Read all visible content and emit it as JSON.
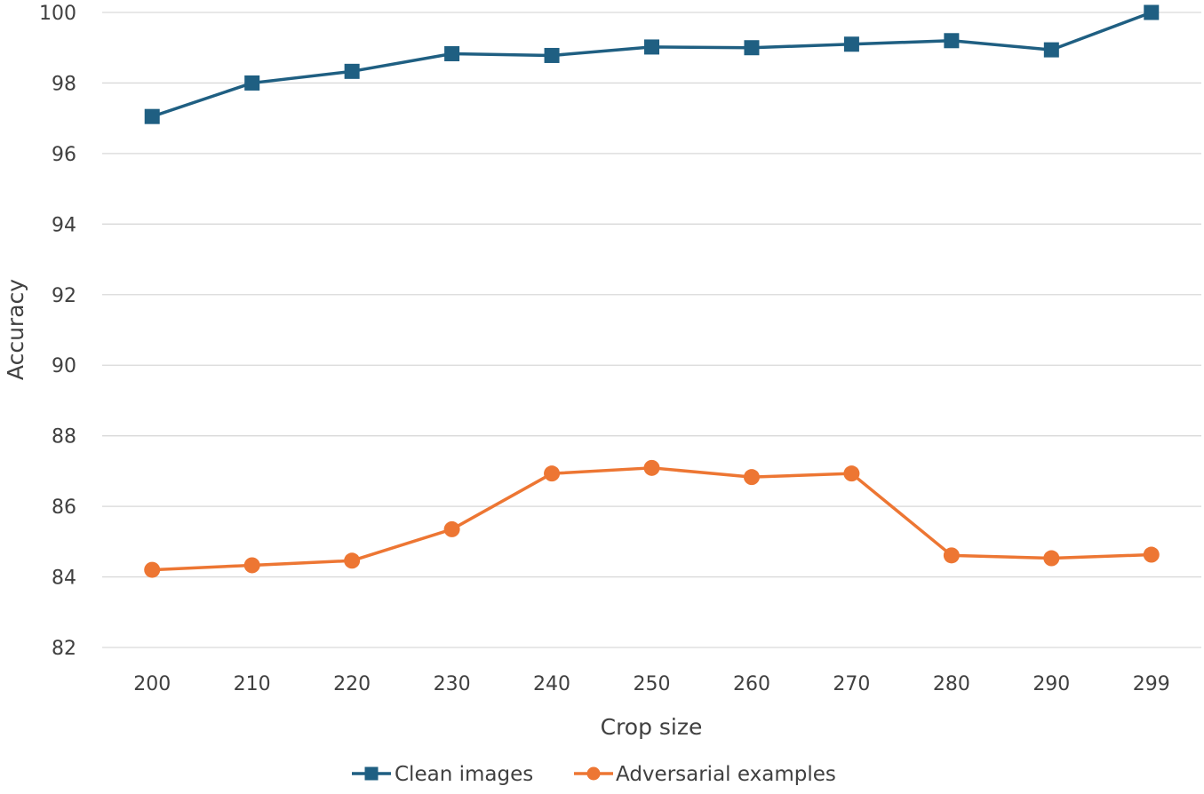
{
  "chart_data": {
    "type": "line",
    "title": "",
    "xlabel": "Crop size",
    "ylabel": "Accuracy",
    "categories": [
      "200",
      "210",
      "220",
      "230",
      "240",
      "250",
      "260",
      "270",
      "280",
      "290",
      "299"
    ],
    "ylim": [
      82,
      100
    ],
    "yticks": [
      82,
      84,
      86,
      88,
      90,
      92,
      94,
      96,
      98,
      100
    ],
    "grid": true,
    "legend_position": "bottom",
    "series": [
      {
        "name": "Clean images",
        "color": "#1f5f82",
        "marker": "square",
        "values": [
          97.05,
          98.0,
          98.33,
          98.83,
          98.78,
          99.02,
          99.0,
          99.1,
          99.2,
          98.94,
          100.0
        ]
      },
      {
        "name": "Adversarial examples",
        "color": "#ed7633",
        "marker": "circle",
        "values": [
          84.2,
          84.33,
          84.46,
          85.35,
          86.93,
          87.09,
          86.83,
          86.93,
          84.61,
          84.53,
          84.63
        ]
      }
    ]
  }
}
